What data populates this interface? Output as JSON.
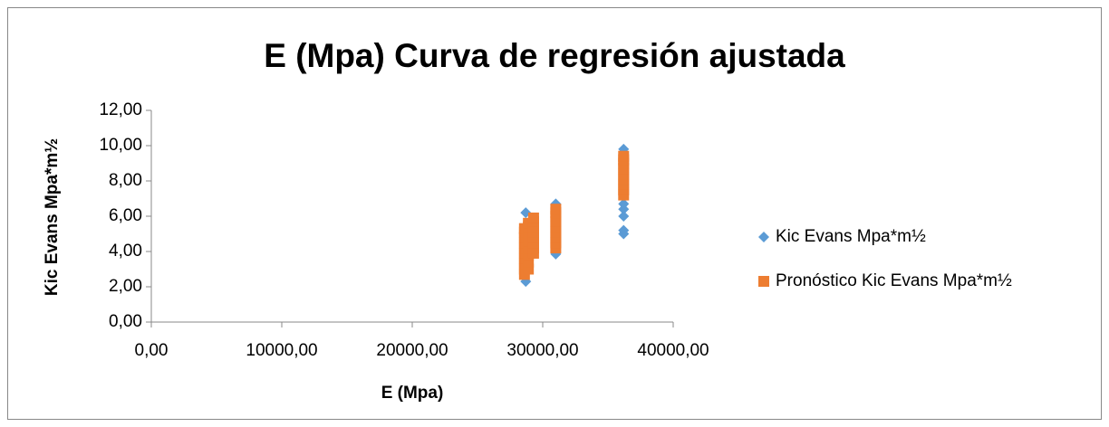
{
  "chart_data": {
    "type": "scatter",
    "title": "E (Mpa) Curva de regresión ajustada",
    "x_label": "E (Mpa)",
    "y_label": "Kic Evans Mpa*m½",
    "xlim": [
      0,
      40000
    ],
    "ylim": [
      0,
      12
    ],
    "xticks": [
      {
        "value": 0,
        "label": "0,00"
      },
      {
        "value": 10000,
        "label": "10000,00"
      },
      {
        "value": 20000,
        "label": "20000,00"
      },
      {
        "value": 30000,
        "label": "30000,00"
      },
      {
        "value": 40000,
        "label": "40000,00"
      }
    ],
    "yticks": [
      {
        "value": 0,
        "label": "0,00"
      },
      {
        "value": 2,
        "label": "2,00"
      },
      {
        "value": 4,
        "label": "4,00"
      },
      {
        "value": 6,
        "label": "6,00"
      },
      {
        "value": 8,
        "label": "8,00"
      },
      {
        "value": 10,
        "label": "10,00"
      },
      {
        "value": 12,
        "label": "12,00"
      }
    ],
    "legend": "right",
    "series": [
      {
        "name": "Kic Evans Mpa*m½",
        "color": "#5b9bd5",
        "marker": "diamond",
        "x": [
          28700,
          28700,
          28700,
          28700,
          28700,
          28700,
          28700,
          31000,
          31000,
          31000,
          31000,
          31000,
          31000,
          31000,
          31000,
          36200,
          36200,
          36200,
          36200,
          36200,
          36200,
          36200,
          36200,
          36200,
          36200,
          36200,
          36200
        ],
        "values": [
          2.3,
          3.0,
          3.5,
          4.0,
          4.5,
          5.0,
          6.2,
          3.85,
          4.2,
          4.6,
          5.0,
          5.4,
          5.8,
          6.2,
          6.7,
          5.0,
          5.2,
          6.0,
          6.4,
          6.7,
          7.2,
          7.6,
          8.0,
          8.5,
          9.0,
          9.5,
          9.8
        ]
      },
      {
        "name": "Pronóstico Kic Evans Mpa*m½",
        "color": "#ed7d31",
        "marker": "square",
        "x": [
          28600,
          28600,
          28600,
          28600,
          28600,
          28600,
          28600,
          28600,
          28600,
          28600,
          28900,
          28900,
          28900,
          28900,
          28900,
          28900,
          28900,
          28900,
          29300,
          29300,
          29300,
          29300,
          29300,
          29300,
          29300,
          29300,
          31000,
          31000,
          31000,
          31000,
          31000,
          31000,
          31000,
          31000,
          31000,
          36200,
          36200,
          36200,
          36200,
          36200,
          36200,
          36200,
          36200,
          36200
        ],
        "values": [
          2.7,
          3.0,
          3.3,
          3.6,
          3.9,
          4.2,
          4.5,
          4.8,
          5.1,
          5.3,
          3.0,
          3.4,
          3.8,
          4.2,
          4.6,
          5.0,
          5.4,
          5.6,
          3.9,
          4.2,
          4.5,
          4.8,
          5.1,
          5.4,
          5.7,
          5.9,
          4.2,
          4.5,
          4.8,
          5.1,
          5.4,
          5.7,
          6.0,
          6.2,
          6.4,
          7.2,
          7.5,
          7.8,
          8.1,
          8.4,
          8.7,
          9.0,
          9.2,
          9.4
        ]
      }
    ]
  }
}
